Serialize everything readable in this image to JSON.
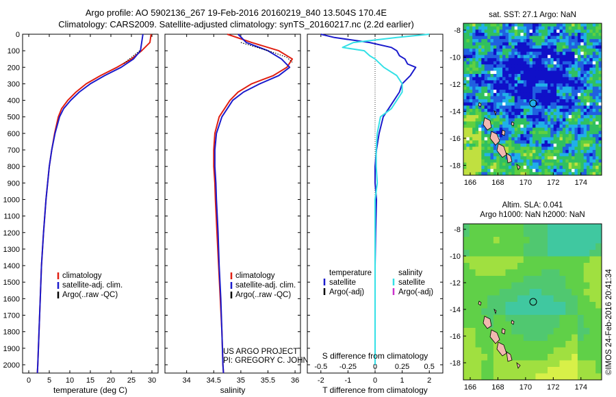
{
  "header": {
    "title_line1": "Argo profile: AO 5902136_267 19-Feb-2016 20160219_840 13.504S 170.4E",
    "title_line2": "Climatology: CARS2009. Satellite-adjusted climatology: synTS_20160217.nc (2.2d earlier)"
  },
  "colors": {
    "climatology": "#e01e10",
    "satellite": "#1a1acc",
    "argo": "#000000",
    "salinity_satellite": "#33e0e6",
    "salinity_argo": "#cc33cc",
    "land": "#f2b8b0"
  },
  "chart_data": [
    {
      "type": "line",
      "name": "temperature-profile",
      "xlabel": "temperature (deg C)",
      "ylim": [
        2050,
        0
      ],
      "xlim": [
        -1.5,
        31.5
      ],
      "xticks": [
        0,
        5,
        10,
        15,
        20,
        25,
        30
      ],
      "yticks": [
        0,
        100,
        200,
        300,
        400,
        500,
        600,
        700,
        800,
        900,
        1000,
        1100,
        1200,
        1300,
        1400,
        1500,
        1600,
        1700,
        1800,
        1900,
        2000
      ],
      "series": [
        {
          "name": "climatology",
          "depth": [
            0,
            50,
            100,
            150,
            200,
            250,
            300,
            350,
            400,
            450,
            500,
            600,
            700,
            800,
            900,
            1000,
            1200,
            1400,
            1600,
            1800,
            2000,
            2050
          ],
          "values": [
            29.8,
            29.5,
            27.5,
            25.0,
            21.5,
            17.5,
            14.0,
            11.5,
            9.5,
            8.0,
            7.2,
            6.3,
            5.6,
            5.0,
            4.6,
            4.2,
            3.6,
            3.1,
            2.8,
            2.5,
            2.2,
            2.1
          ]
        },
        {
          "name": "satellite-adj. clim.",
          "depth": [
            0,
            50,
            100,
            150,
            200,
            250,
            300,
            350,
            400,
            450,
            500,
            600,
            700,
            800,
            900,
            1000,
            1200,
            1400,
            1600,
            1800,
            2000,
            2050
          ],
          "values": [
            27.8,
            27.5,
            27.2,
            25.5,
            22.5,
            18.5,
            15.0,
            12.3,
            10.2,
            8.5,
            7.5,
            6.4,
            5.6,
            5.0,
            4.6,
            4.2,
            3.6,
            3.1,
            2.8,
            2.5,
            2.2,
            2.1
          ]
        },
        {
          "name": "Argo(..raw -QC)",
          "depth": [
            100,
            120,
            140,
            160,
            180
          ],
          "values": [
            27.0,
            26.0,
            25.0,
            24.0,
            23.0
          ]
        }
      ],
      "legend": [
        "climatology",
        "satellite-adj. clim.",
        "Argo(..raw -QC)"
      ]
    },
    {
      "type": "line",
      "name": "salinity-profile",
      "xlabel": "salinity",
      "ylim": [
        2050,
        0
      ],
      "xlim": [
        33.6,
        36.1
      ],
      "xticks": [
        34,
        34.5,
        35,
        35.5,
        36
      ],
      "series": [
        {
          "name": "climatology",
          "depth": [
            0,
            50,
            100,
            150,
            200,
            250,
            300,
            350,
            400,
            450,
            500,
            600,
            700,
            800,
            900,
            1000,
            1200,
            1400,
            1600,
            1800,
            2000,
            2050
          ],
          "values": [
            34.75,
            35.2,
            35.7,
            35.95,
            35.85,
            35.6,
            35.2,
            34.95,
            34.8,
            34.7,
            34.6,
            34.52,
            34.5,
            34.5,
            34.52,
            34.53,
            34.56,
            34.59,
            34.62,
            34.65,
            34.67,
            34.68
          ]
        },
        {
          "name": "satellite-adj. clim.",
          "depth": [
            0,
            50,
            100,
            150,
            200,
            250,
            300,
            350,
            400,
            450,
            500,
            600,
            700,
            800,
            900,
            1000,
            1200,
            1400,
            1600,
            1800,
            2000,
            2050
          ],
          "values": [
            34.95,
            35.1,
            35.5,
            35.75,
            35.9,
            35.7,
            35.35,
            35.05,
            34.85,
            34.75,
            34.65,
            34.55,
            34.52,
            34.52,
            34.54,
            34.55,
            34.58,
            34.6,
            34.63,
            34.65,
            34.67,
            34.68
          ]
        },
        {
          "name": "Argo(..raw -QC)",
          "depth": [
            50,
            80,
            110,
            140,
            170
          ],
          "values": [
            35.0,
            35.3,
            35.6,
            35.85,
            35.95
          ]
        }
      ],
      "legend": [
        "climatology",
        "satellite-adj. clim.",
        "Argo(..raw -QC)"
      ]
    },
    {
      "type": "line",
      "name": "difference-profile",
      "xlabel": "T difference from climatology",
      "xlabel_top": "S difference from climatology",
      "ylim": [
        2050,
        0
      ],
      "xlim": [
        -2.5,
        2.5
      ],
      "xticks_T": [
        -2,
        -1,
        0,
        1,
        2
      ],
      "xticks_S": [
        -0.5,
        -0.25,
        0,
        0.25,
        0.5
      ],
      "series": [
        {
          "name": "temperature satellite",
          "depth": [
            0,
            20,
            50,
            80,
            100,
            130,
            150,
            180,
            200,
            250,
            300,
            350,
            400,
            450,
            500,
            600,
            700,
            800,
            900,
            1000,
            1200,
            1400,
            1600,
            1800,
            2000
          ],
          "values": [
            -2.0,
            -1.5,
            -0.2,
            0.6,
            0.8,
            0.9,
            1.1,
            1.2,
            1.5,
            1.3,
            1.0,
            0.9,
            0.7,
            0.5,
            0.3,
            0.15,
            0.05,
            0.0,
            0.0,
            0.05,
            0.02,
            0.0,
            0.0,
            0.0,
            0.0
          ]
        },
        {
          "name": "salinity satellite",
          "depth": [
            0,
            20,
            50,
            80,
            100,
            130,
            150,
            200,
            250,
            300,
            350,
            400,
            450,
            500,
            600,
            700,
            800,
            900,
            1000,
            1200,
            1400,
            1600,
            1800,
            2000
          ],
          "values": [
            0.5,
            0.2,
            -0.2,
            -0.3,
            -0.1,
            -0.05,
            0.0,
            0.08,
            0.2,
            0.25,
            0.25,
            0.2,
            0.15,
            0.05,
            0.02,
            0.01,
            0.01,
            0.02,
            0.0,
            0.0,
            0.0,
            0.0,
            0.0,
            0.0
          ]
        }
      ],
      "legend_temperature_title": "temperature",
      "legend_salinity_title": "salinity",
      "legend_temperature": [
        "satellite",
        "Argo(-adj)"
      ],
      "legend_salinity": [
        "satellite",
        "Argo(-adj)"
      ]
    }
  ],
  "credits": {
    "line1": "US ARGO PROJECT",
    "line2": "PI: GREGORY C. JOHNSON"
  },
  "maps": {
    "sst": {
      "title": "sat. SST: 27.1  Argo: NaN",
      "lon_ticks": [
        "166",
        "168",
        "170",
        "172",
        "174"
      ],
      "lat_ticks": [
        "-8",
        "-10",
        "-12",
        "-14",
        "-16",
        "-18"
      ]
    },
    "sla": {
      "title_line1": "Altim. SLA: 0.041",
      "title_line2": "Argo h1000: NaN h2000: NaN",
      "lon_ticks": [
        "166",
        "168",
        "170",
        "172",
        "174"
      ],
      "lat_ticks": [
        "-8",
        "-10",
        "-12",
        "-14",
        "-16",
        "-18"
      ]
    }
  },
  "stamp": "©IMOS 24-Feb-2016 20:41:34"
}
